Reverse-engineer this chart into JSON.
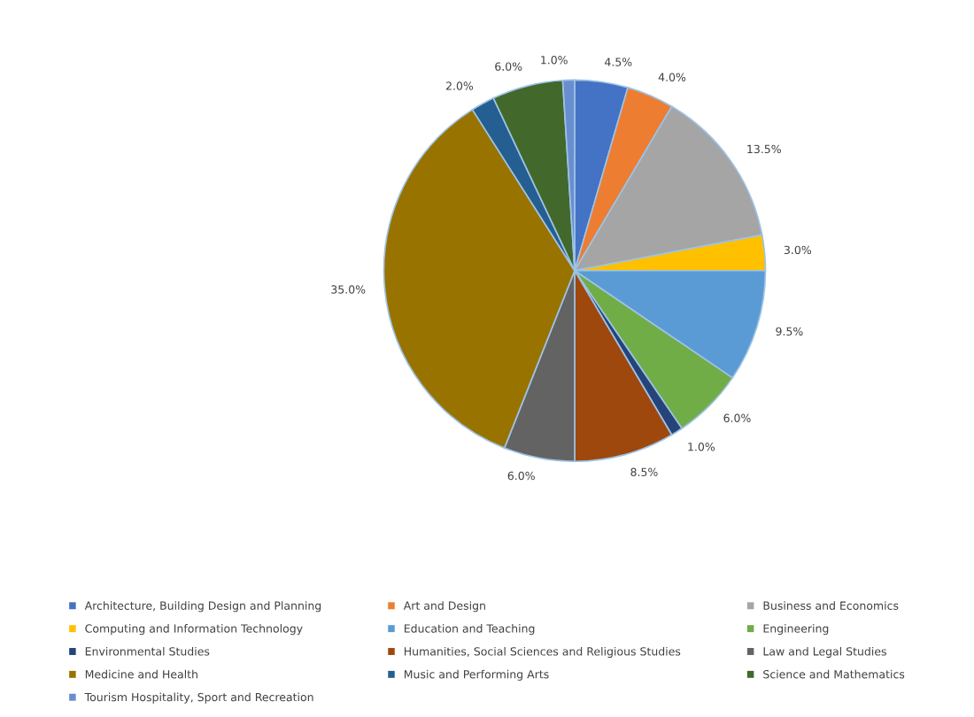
{
  "chart_data": {
    "type": "pie",
    "categories": [
      "Architecture, Building Design and Planning",
      "Art and Design",
      "Business and Economics",
      "Computing and Information Technology",
      "Education and Teaching",
      "Engineering",
      "Environmental Studies",
      "Humanities, Social Sciences and Religious Studies",
      "Law and Legal Studies",
      "Medicine and Health",
      "Music and Performing Arts",
      "Science and Mathematics",
      "Tourism Hospitality, Sport and Recreation"
    ],
    "values": [
      4.5,
      4.0,
      13.5,
      3.0,
      9.5,
      6.0,
      1.0,
      8.5,
      6.0,
      35.0,
      2.0,
      6.0,
      1.0
    ],
    "value_labels": [
      "4.5%",
      "4.0%",
      "13.5%",
      "3.0%",
      "9.5%",
      "6.0%",
      "1.0%",
      "8.5%",
      "6.0%",
      "35.0%",
      "2.0%",
      "6.0%",
      "1.0%"
    ],
    "colors": [
      "#4472c4",
      "#ed7d31",
      "#a5a5a5",
      "#ffc000",
      "#5b9bd5",
      "#70ad47",
      "#264478",
      "#9e480e",
      "#636363",
      "#997300",
      "#255e91",
      "#43682b",
      "#698ed0"
    ],
    "legend": "bottom"
  }
}
